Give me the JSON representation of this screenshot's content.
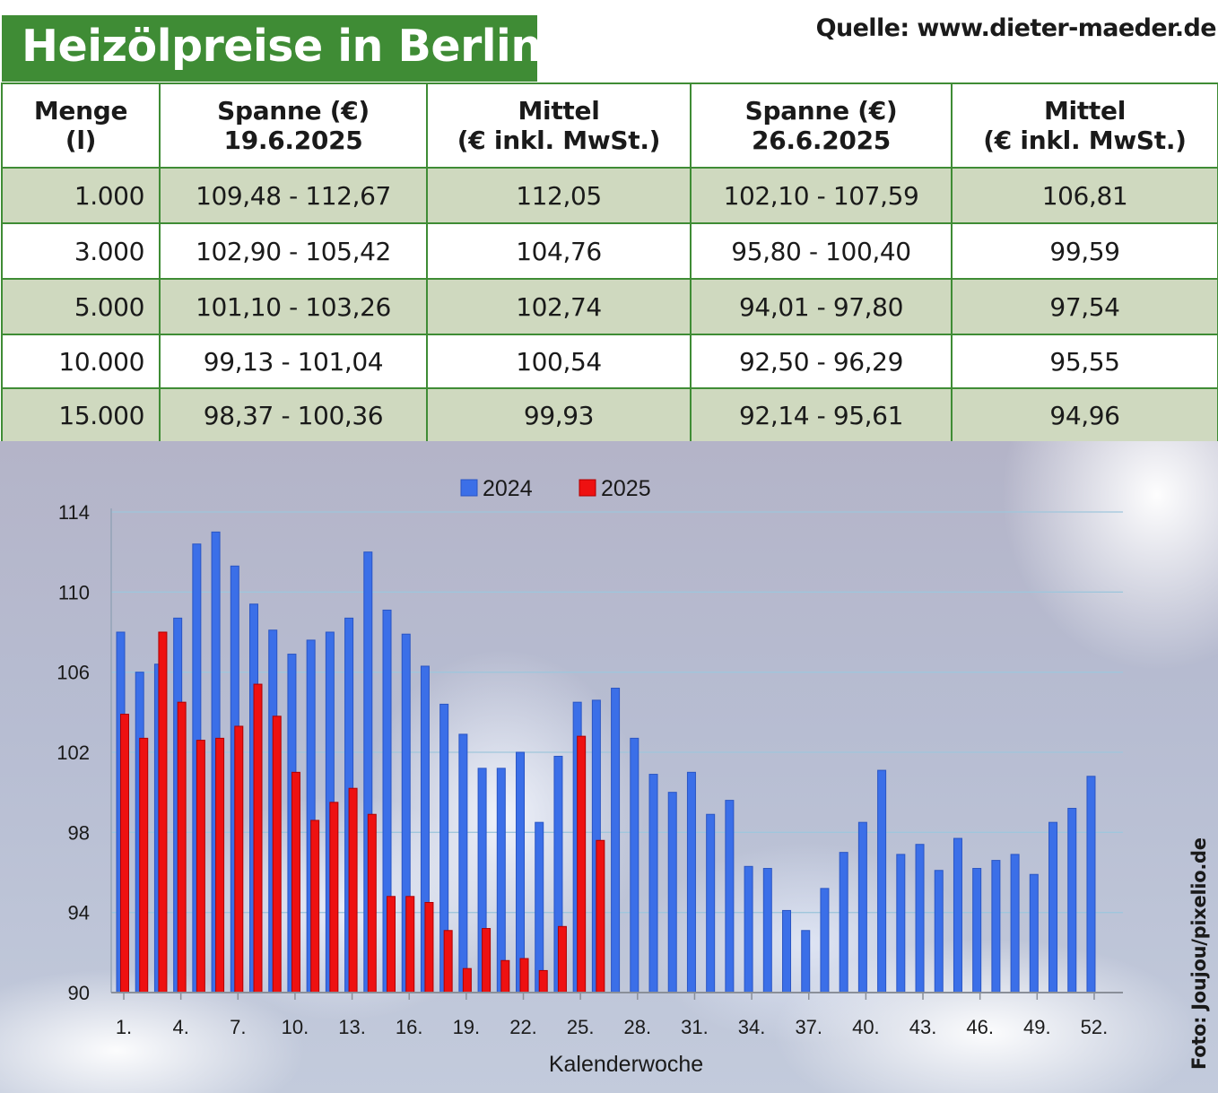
{
  "header": {
    "title": "Heizölpreise in Berlin",
    "source": "Quelle: www.dieter-maeder.de"
  },
  "table": {
    "columns": [
      {
        "line1": "Menge",
        "line2": "(l)"
      },
      {
        "line1": "Spanne (€)",
        "line2": "19.6.2025"
      },
      {
        "line1": "Mittel",
        "line2": "(€ inkl. MwSt.)"
      },
      {
        "line1": "Spanne (€)",
        "line2": "26.6.2025"
      },
      {
        "line1": "Mittel",
        "line2": "(€ inkl. MwSt.)"
      }
    ],
    "rows": [
      [
        "1.000",
        "109,48 - 112,67",
        "112,05",
        "102,10 - 107,59",
        "106,81"
      ],
      [
        "3.000",
        "102,90 - 105,42",
        "104,76",
        "95,80 - 100,40",
        "99,59"
      ],
      [
        "5.000",
        "101,10 - 103,26",
        "102,74",
        "94,01 - 97,80",
        "97,54"
      ],
      [
        "10.000",
        "99,13 - 101,04",
        "100,54",
        "92,50 - 96,29",
        "95,55"
      ],
      [
        "15.000",
        "98,37 - 100,36",
        "99,93",
        "92,14 - 95,61",
        "94,96"
      ]
    ]
  },
  "chart_data": {
    "type": "bar",
    "xlabel": "Kalenderwoche",
    "ylabel": "",
    "ylim": [
      90,
      114
    ],
    "yticks": [
      90,
      94,
      98,
      102,
      106,
      110,
      114
    ],
    "weeks": [
      1,
      2,
      3,
      4,
      5,
      6,
      7,
      8,
      9,
      10,
      11,
      12,
      13,
      14,
      15,
      16,
      17,
      18,
      19,
      20,
      21,
      22,
      23,
      24,
      25,
      26,
      27,
      28,
      29,
      30,
      31,
      32,
      33,
      34,
      35,
      36,
      37,
      38,
      39,
      40,
      41,
      42,
      43,
      44,
      45,
      46,
      47,
      48,
      49,
      50,
      51,
      52
    ],
    "xtick_labels": [
      "1.",
      "4.",
      "7.",
      "10.",
      "13.",
      "16.",
      "19.",
      "22.",
      "25.",
      "28.",
      "31.",
      "34.",
      "37.",
      "40.",
      "43.",
      "46.",
      "49.",
      "52."
    ],
    "grid": true,
    "legend_position": "top",
    "series": [
      {
        "name": "2024",
        "color": "#3b6fe8",
        "values": [
          108.0,
          106.0,
          106.4,
          108.7,
          112.4,
          113.0,
          111.3,
          109.4,
          108.1,
          106.9,
          107.6,
          108.0,
          108.7,
          112.0,
          109.1,
          107.9,
          106.3,
          104.4,
          102.9,
          101.2,
          101.2,
          102.0,
          98.5,
          101.8,
          104.5,
          104.6,
          105.2,
          102.7,
          100.9,
          100.0,
          101.0,
          98.9,
          99.6,
          96.3,
          96.2,
          94.1,
          93.1,
          95.2,
          97.0,
          98.5,
          101.1,
          96.9,
          97.4,
          96.1,
          97.7,
          96.2,
          96.6,
          96.9,
          95.9,
          98.5,
          99.2,
          100.8
        ]
      },
      {
        "name": "2025",
        "color": "#ee1111",
        "values": [
          103.9,
          102.7,
          108.0,
          104.5,
          102.6,
          102.7,
          103.3,
          105.4,
          103.8,
          101.0,
          98.6,
          99.5,
          100.2,
          98.9,
          94.8,
          94.8,
          94.5,
          93.1,
          91.2,
          93.2,
          91.6,
          91.7,
          91.1,
          93.3,
          102.8,
          97.6
        ]
      }
    ]
  },
  "credit": "Foto: Joujou/pixelio.de"
}
